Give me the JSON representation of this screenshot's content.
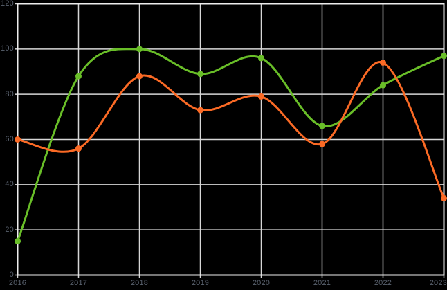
{
  "chart_data": {
    "type": "line",
    "title": "",
    "xlabel": "",
    "ylabel": "",
    "x": [
      "2016",
      "2017",
      "2018",
      "2019",
      "2020",
      "2021",
      "2022",
      "2023"
    ],
    "series": [
      {
        "name": "green-series",
        "color": "#69be28",
        "values": [
          15,
          88,
          100,
          89,
          96,
          66,
          84,
          97
        ]
      },
      {
        "name": "orange-series",
        "color": "#fb6a25",
        "values": [
          60,
          56,
          88,
          73,
          79,
          58,
          94,
          34
        ]
      }
    ],
    "ylim": [
      0,
      120
    ],
    "y_ticks": [
      0,
      20,
      40,
      60,
      80,
      100,
      120
    ],
    "grid": true,
    "legend": "none",
    "smooth": true,
    "marker": "circle",
    "colors": {
      "background": "#000000",
      "gridline": "#d6d6d6",
      "frame": "#ececec",
      "tick_label": "#59616e"
    }
  }
}
